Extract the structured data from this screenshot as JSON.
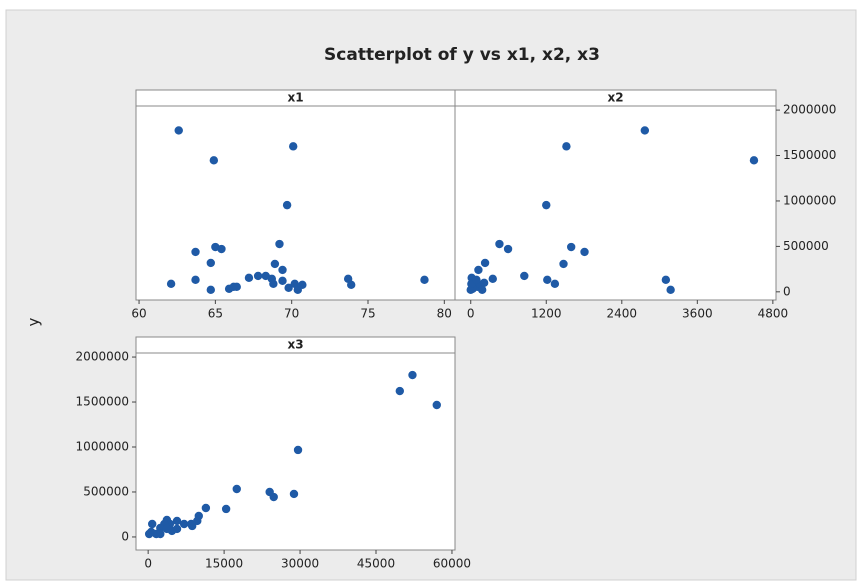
{
  "title": "Scatterplot of y vs x1, x2, x3",
  "y_label": "y",
  "chart_data": [
    {
      "type": "scatter",
      "title": "x1",
      "color": "#1f5aa6",
      "x": [
        62.6,
        64.9,
        70.1,
        69.7,
        69.2,
        65.0,
        65.4,
        63.7,
        64.7,
        68.9,
        69.4,
        63.7,
        62.1,
        64.7,
        65.9,
        66.2,
        66.4,
        67.2,
        67.8,
        68.3,
        68.7,
        68.8,
        69.4,
        69.8,
        70.2,
        70.4,
        70.7,
        73.7,
        73.9,
        78.7
      ],
      "y": [
        1776000,
        1447000,
        1601000,
        954000,
        526000,
        493000,
        471000,
        439000,
        318000,
        307000,
        241000,
        132000,
        88000,
        22000,
        33000,
        55000,
        55000,
        154000,
        175000,
        175000,
        143000,
        88000,
        121000,
        44000,
        88000,
        22000,
        77000,
        143000,
        77000,
        132000
      ],
      "xlim": [
        59.8,
        80.7
      ],
      "xticks": [
        60,
        65,
        70,
        75,
        80
      ],
      "ylim": [
        -90000,
        2045000
      ]
    },
    {
      "type": "scatter",
      "title": "x2",
      "color": "#1f5aa6",
      "yaxis_side": "right",
      "x": [
        2766,
        4500,
        1520,
        1200,
        1596,
        1808,
        456,
        593,
        228,
        1474,
        122,
        851,
        1216,
        1337,
        3100,
        3176,
        350,
        15,
        61,
        106,
        0,
        30,
        152,
        213,
        10,
        91,
        182
      ],
      "y": [
        1776000,
        1447000,
        1601000,
        954000,
        493000,
        439000,
        526000,
        471000,
        318000,
        307000,
        241000,
        175000,
        132000,
        88000,
        132000,
        22000,
        143000,
        154000,
        99000,
        55000,
        22000,
        33000,
        77000,
        99000,
        88000,
        132000,
        22000
      ],
      "xlim": [
        -250,
        4850
      ],
      "xticks": [
        0,
        1200,
        2400,
        3600,
        4800
      ],
      "ylim": [
        -90000,
        2045000
      ],
      "yticks": [
        0,
        500000,
        1000000,
        1500000,
        2000000
      ]
    },
    {
      "type": "scatter",
      "title": "x3",
      "color": "#1f5aa6",
      "yaxis_side": "left",
      "x": [
        52200,
        49700,
        57000,
        29600,
        28800,
        24000,
        24800,
        17500,
        15400,
        11400,
        10000,
        9700,
        8700,
        7100,
        5700,
        4300,
        3700,
        3200,
        2400,
        800,
        600,
        1600,
        2400,
        4700,
        5700,
        3700,
        200,
        8500
      ],
      "y": [
        1800000,
        1622000,
        1467000,
        967000,
        478000,
        500000,
        444000,
        533000,
        311000,
        322000,
        233000,
        178000,
        122000,
        144000,
        178000,
        144000,
        189000,
        144000,
        100000,
        144000,
        56000,
        33000,
        33000,
        67000,
        89000,
        89000,
        33000,
        144000
      ],
      "xlim": [
        -2400,
        60600
      ],
      "xticks": [
        0,
        15000,
        30000,
        45000,
        60000
      ],
      "ylim": [
        -145000,
        2045000
      ],
      "yticks": [
        0,
        500000,
        1000000,
        1500000,
        2000000
      ]
    }
  ]
}
